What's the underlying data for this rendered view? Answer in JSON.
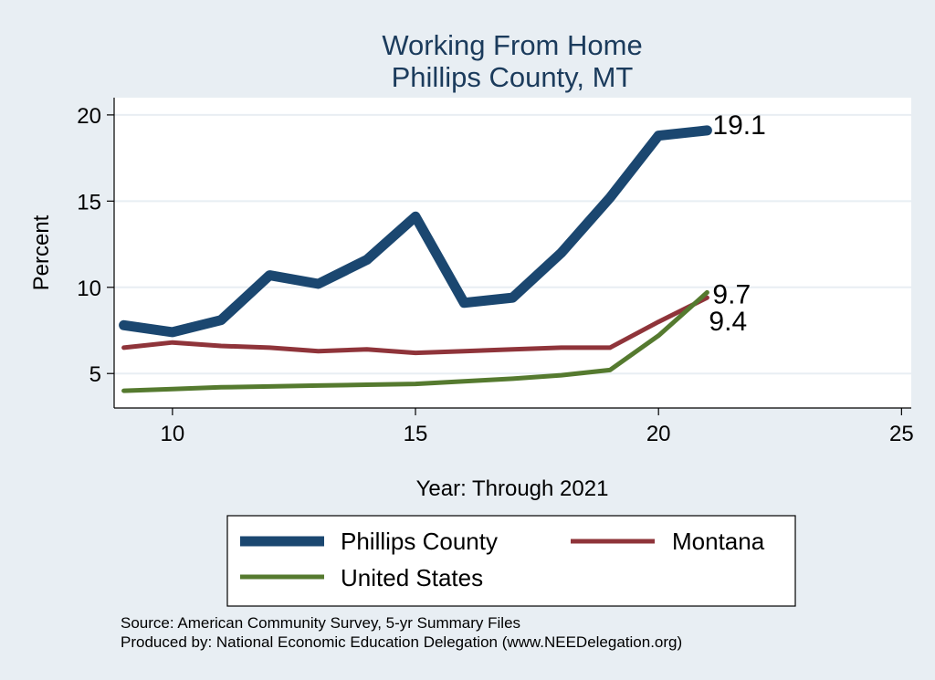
{
  "chart_data": {
    "type": "line",
    "title": [
      "Working From Home",
      "Phillips County, MT"
    ],
    "xlabel": "Year: Through 2021",
    "ylabel": "Percent",
    "xlim": [
      8.8,
      25.2
    ],
    "ylim": [
      3.0,
      21.0
    ],
    "xticks": [
      10,
      15,
      20,
      25
    ],
    "yticks": [
      5,
      10,
      15,
      20
    ],
    "grid": true,
    "legend_position": "bottom",
    "series": [
      {
        "name": "Phillips County",
        "color": "#1b4770",
        "x": [
          9,
          10,
          11,
          12,
          13,
          14,
          15,
          16,
          17,
          18,
          19,
          20,
          21
        ],
        "values": [
          7.8,
          7.4,
          8.1,
          10.7,
          10.2,
          11.6,
          14.1,
          9.1,
          9.4,
          12.0,
          15.2,
          18.8,
          19.1
        ]
      },
      {
        "name": "Montana",
        "color": "#8f343a",
        "x": [
          9,
          10,
          11,
          12,
          13,
          14,
          15,
          16,
          17,
          18,
          19,
          20,
          21
        ],
        "values": [
          6.5,
          6.8,
          6.6,
          6.5,
          6.3,
          6.4,
          6.2,
          6.3,
          6.4,
          6.5,
          6.5,
          8.0,
          9.4
        ]
      },
      {
        "name": "United States",
        "color": "#557a2f",
        "x": [
          9,
          10,
          11,
          12,
          13,
          14,
          15,
          16,
          17,
          18,
          19,
          20,
          21
        ],
        "values": [
          4.0,
          4.1,
          4.2,
          4.25,
          4.3,
          4.35,
          4.4,
          4.55,
          4.7,
          4.9,
          5.2,
          7.2,
          9.7
        ]
      }
    ],
    "end_labels": [
      {
        "text": "19.1",
        "x": 21,
        "y": 19.1
      },
      {
        "text": "9.7",
        "x": 21,
        "y": 9.7
      },
      {
        "text": "9.4",
        "x": 21,
        "y": 9.4
      }
    ],
    "notes": [
      "Source: American Community Survey, 5-yr Summary Files",
      "Produced by: National Economic Education Delegation (www.NEEDelegation.org)"
    ]
  }
}
